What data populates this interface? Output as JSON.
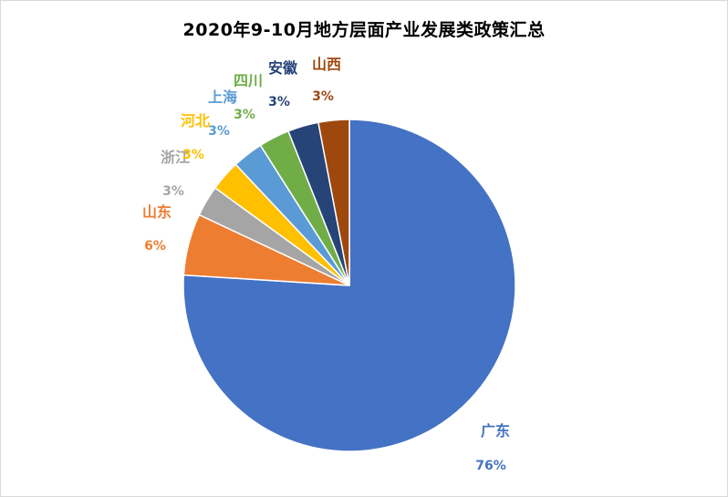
{
  "chart_data": {
    "type": "pie",
    "title": "2020年9-10月地方层面产业发展类政策汇总",
    "slices": [
      {
        "name": "广东",
        "value": 76,
        "label": "76%",
        "color": "#4472C4"
      },
      {
        "name": "山东",
        "value": 6,
        "label": "6%",
        "color": "#ED7D31"
      },
      {
        "name": "浙江",
        "value": 3,
        "label": "3%",
        "color": "#A5A5A5"
      },
      {
        "name": "河北",
        "value": 3,
        "label": "3%",
        "color": "#FFC000"
      },
      {
        "name": "上海",
        "value": 3,
        "label": "3%",
        "color": "#5B9BD5"
      },
      {
        "name": "四川",
        "value": 3,
        "label": "3%",
        "color": "#70AD47"
      },
      {
        "name": "安徽",
        "value": 3,
        "label": "3%",
        "color": "#264478"
      },
      {
        "name": "山西",
        "value": 3,
        "label": "3%",
        "color": "#9E480E"
      }
    ],
    "start": "12 o'clock",
    "direction": "clockwise",
    "legend": "none"
  }
}
